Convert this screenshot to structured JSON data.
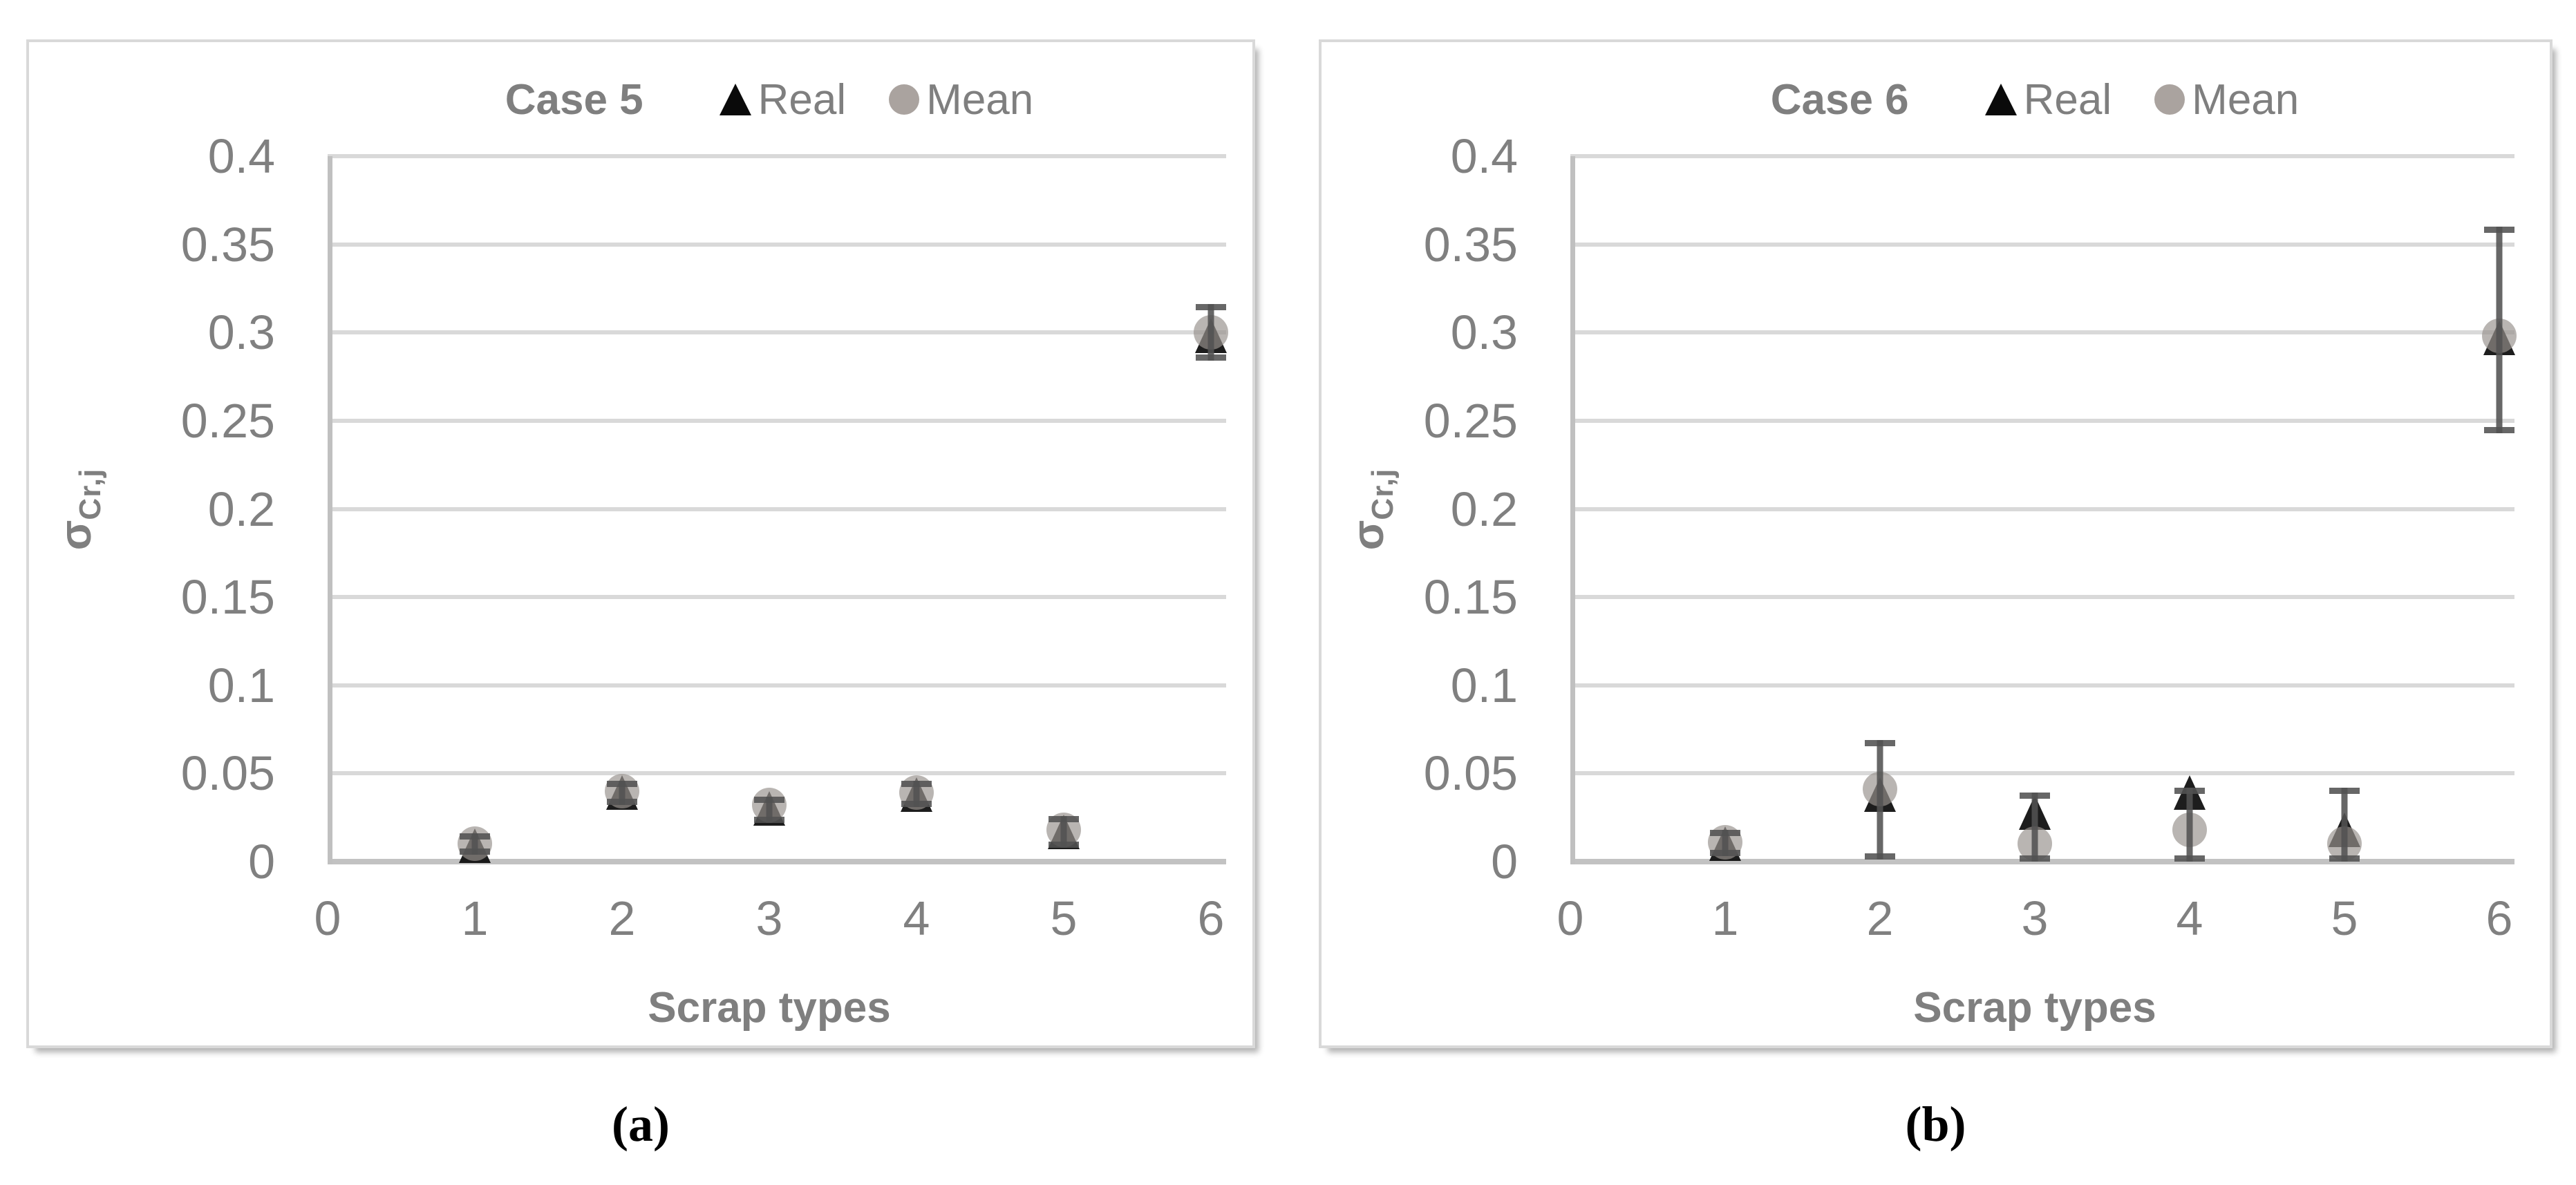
{
  "figure": {
    "captions": [
      "(a)",
      "(b)"
    ],
    "colors": {
      "text_gray": "#7f7f7f",
      "tick_gray": "#808080",
      "gridline": "#d9d9d9",
      "zero_line": "#c2c2c2",
      "axis_line": "#c0c0c0",
      "error_bar": "#525252",
      "real_marker": "#0c0c0c",
      "mean_marker": "#98928e",
      "panel_border": "#d9d9d9",
      "background": "#ffffff"
    }
  },
  "chart_data": [
    {
      "type": "scatter",
      "title": "Case 5",
      "xlabel": "Scrap types",
      "ylabel": "σCr,j",
      "ylabel_sigma": "σ",
      "ylabel_sub": "Cr,j",
      "xlim": [
        0,
        6
      ],
      "ylim": [
        0,
        0.4
      ],
      "xticks": [
        "0",
        "1",
        "2",
        "3",
        "4",
        "5",
        "6"
      ],
      "yticks": [
        "0",
        "0.05",
        "0.1",
        "0.15",
        "0.2",
        "0.25",
        "0.3",
        "0.35",
        "0.4"
      ],
      "grid": "horizontal",
      "legend_position": "top",
      "x": [
        1,
        2,
        3,
        4,
        5,
        6
      ],
      "series": [
        {
          "name": "Real",
          "marker": "triangle",
          "color": "#0c0c0c",
          "values": [
            0.009,
            0.039,
            0.03,
            0.038,
            0.017,
            0.298
          ]
        },
        {
          "name": "Mean",
          "marker": "circle",
          "color": "#98928e",
          "values": [
            0.01,
            0.04,
            0.032,
            0.039,
            0.018,
            0.3
          ]
        }
      ],
      "error_bars": {
        "attached_to": "Mean",
        "low": [
          0.004,
          0.032,
          0.022,
          0.031,
          0.008,
          0.284
        ],
        "high": [
          0.016,
          0.046,
          0.037,
          0.046,
          0.026,
          0.316
        ]
      }
    },
    {
      "type": "scatter",
      "title": "Case 6",
      "xlabel": "Scrap types",
      "ylabel": "σCr,j",
      "ylabel_sigma": "σ",
      "ylabel_sub": "Cr,j",
      "xlim": [
        0,
        6
      ],
      "ylim": [
        0,
        0.4
      ],
      "xticks": [
        "0",
        "1",
        "2",
        "3",
        "4",
        "5",
        "6"
      ],
      "yticks": [
        "0",
        "0.05",
        "0.1",
        "0.15",
        "0.2",
        "0.25",
        "0.3",
        "0.35",
        "0.4"
      ],
      "grid": "horizontal",
      "legend_position": "top",
      "x": [
        1,
        2,
        3,
        4,
        5,
        6
      ],
      "series": [
        {
          "name": "Real",
          "marker": "triangle",
          "color": "#0c0c0c",
          "values": [
            0.01,
            0.038,
            0.028,
            0.039,
            0.018,
            0.297
          ]
        },
        {
          "name": "Mean",
          "marker": "circle",
          "color": "#98928e",
          "values": [
            0.011,
            0.041,
            0.01,
            0.018,
            0.01,
            0.298
          ]
        }
      ],
      "error_bars": {
        "attached_to": "Mean",
        "low": [
          0.003,
          0.001,
          0.0,
          0.0,
          0.0,
          0.243
        ],
        "high": [
          0.018,
          0.069,
          0.039,
          0.042,
          0.042,
          0.36
        ]
      }
    }
  ]
}
